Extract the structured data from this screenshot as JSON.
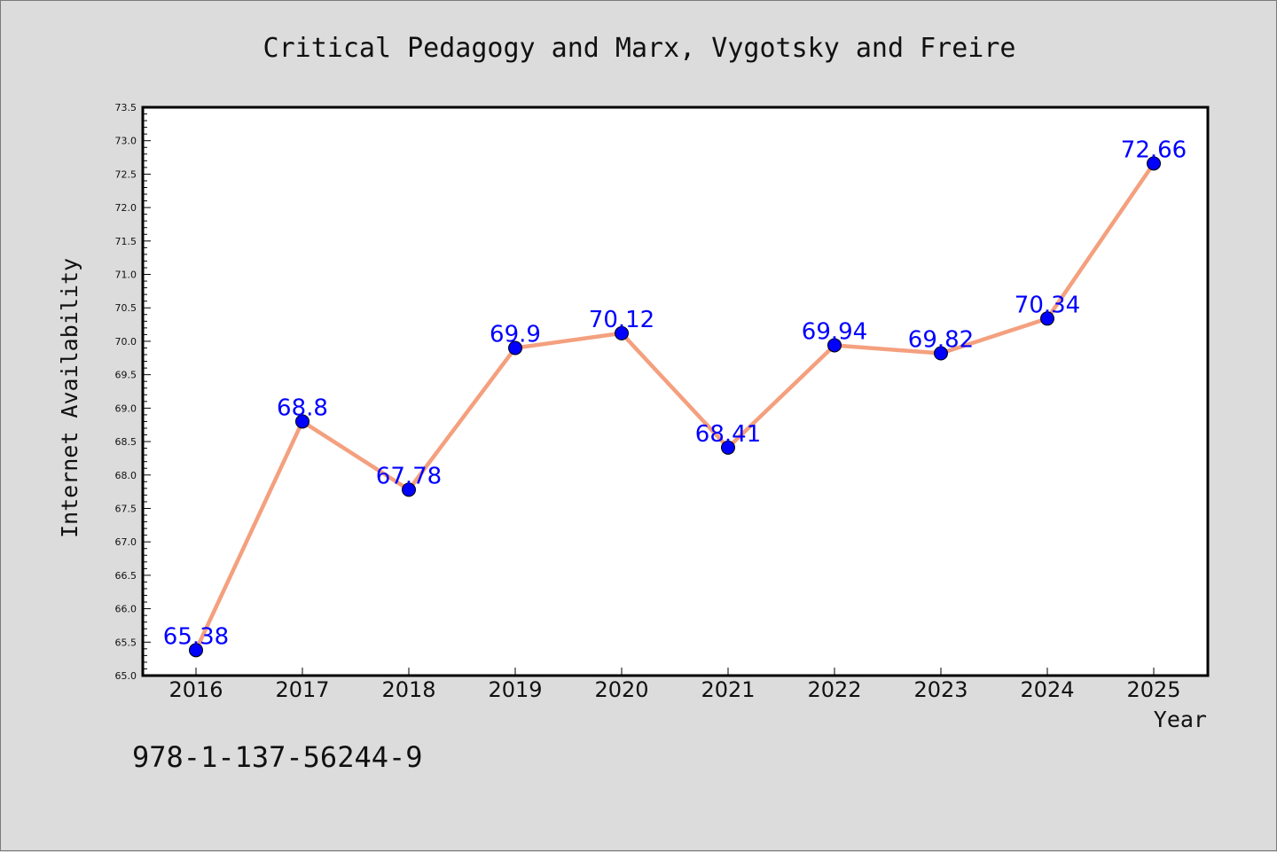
{
  "chart_data": {
    "type": "line",
    "title": "Critical Pedagogy and Marx, Vygotsky and Freire",
    "xlabel": "Year",
    "ylabel": "Internet Availability",
    "categories": [
      "2016",
      "2017",
      "2018",
      "2019",
      "2020",
      "2021",
      "2022",
      "2023",
      "2024",
      "2025"
    ],
    "values": [
      65.38,
      68.8,
      67.78,
      69.9,
      70.12,
      68.41,
      69.94,
      69.82,
      70.34,
      72.66
    ],
    "data_labels": [
      "65.38",
      "68.8",
      "67.78",
      "69.9",
      "70.12",
      "68.41",
      "69.94",
      "69.82",
      "70.34",
      "72.66"
    ],
    "ylim": [
      65.0,
      73.5
    ],
    "yticks": [
      "65.0",
      "65.5",
      "66.0",
      "66.5",
      "67.0",
      "67.5",
      "68.0",
      "68.5",
      "69.0",
      "69.5",
      "70.0",
      "70.5",
      "71.0",
      "71.5",
      "72.0",
      "72.5",
      "73.0",
      "73.5"
    ],
    "grid": false,
    "legend": "none",
    "line_color": "#f4a07e",
    "marker_color": "#0000ff",
    "label_color": "#0000ff",
    "background_color": "#dcdcdc",
    "plot_background": "#ffffff"
  },
  "footer": {
    "isbn": "978-1-137-56244-9"
  }
}
